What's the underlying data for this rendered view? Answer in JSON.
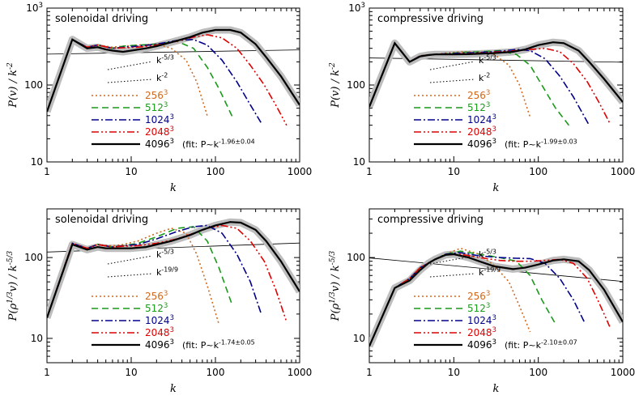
{
  "figure": {
    "resolution_labels": [
      "256",
      "512",
      "1024",
      "2048",
      "4096"
    ],
    "resolution_colors": [
      "#d2691e",
      "#1a9a1a",
      "#00008b",
      "#e00000",
      "#000000"
    ]
  },
  "chart_data": [
    {
      "type": "line",
      "title": "solenoidal driving",
      "xlabel": "k",
      "ylabel": "P(v) / k^-2",
      "xscale": "log",
      "yscale": "log",
      "xlim": [
        1,
        1000
      ],
      "ylim": [
        10,
        1000
      ],
      "xticks": [
        "1",
        "10",
        "100",
        "1000"
      ],
      "yticks": [
        "10",
        "100",
        "10^3"
      ],
      "series": [
        {
          "name": "256^3",
          "x": [
            1,
            2,
            3,
            4,
            6,
            8,
            12,
            20,
            30,
            45,
            60,
            80
          ],
          "y": [
            45,
            390,
            310,
            330,
            310,
            320,
            330,
            340,
            300,
            210,
            110,
            40
          ]
        },
        {
          "name": "512^3",
          "x": [
            1,
            2,
            3,
            4,
            6,
            8,
            12,
            20,
            35,
            55,
            80,
            110,
            160
          ],
          "y": [
            45,
            390,
            310,
            330,
            300,
            320,
            330,
            340,
            370,
            300,
            170,
            90,
            38
          ]
        },
        {
          "name": "1024^3",
          "x": [
            1,
            2,
            3,
            4,
            6,
            8,
            12,
            20,
            35,
            55,
            80,
            120,
            180,
            260,
            350
          ],
          "y": [
            45,
            390,
            310,
            330,
            300,
            310,
            320,
            340,
            380,
            390,
            330,
            210,
            110,
            55,
            32
          ]
        },
        {
          "name": "2048^3",
          "x": [
            1,
            2,
            3,
            4,
            6,
            8,
            12,
            20,
            35,
            55,
            80,
            120,
            180,
            260,
            380,
            520,
            700
          ],
          "y": [
            45,
            390,
            310,
            330,
            300,
            305,
            310,
            330,
            370,
            420,
            450,
            410,
            300,
            180,
            100,
            55,
            30
          ]
        },
        {
          "name": "4096^3",
          "x": [
            1,
            2,
            3,
            4,
            5,
            6,
            8,
            10,
            15,
            20,
            30,
            50,
            70,
            100,
            150,
            200,
            300,
            400,
            600,
            1000
          ],
          "y": [
            45,
            390,
            300,
            310,
            290,
            280,
            270,
            280,
            300,
            320,
            360,
            420,
            480,
            520,
            520,
            480,
            340,
            230,
            130,
            55
          ]
        }
      ],
      "fit_label": "(fit: P~k^{-1.96±0.04})",
      "annotations": [
        "k^-5/3",
        "k^-2"
      ]
    },
    {
      "type": "line",
      "title": "compressive driving",
      "xlabel": "k",
      "ylabel": "P(v) / k^-2",
      "xscale": "log",
      "yscale": "log",
      "xlim": [
        1,
        1000
      ],
      "ylim": [
        10,
        1000
      ],
      "xticks": [
        "1",
        "10",
        "100",
        "1000"
      ],
      "yticks": [
        "10",
        "100",
        "10^3"
      ],
      "series": [
        {
          "name": "256^3",
          "x": [
            1,
            2,
            3,
            4,
            6,
            8,
            12,
            20,
            30,
            45,
            60,
            80
          ],
          "y": [
            52,
            350,
            200,
            240,
            250,
            260,
            270,
            270,
            250,
            180,
            100,
            38
          ]
        },
        {
          "name": "512^3",
          "x": [
            1,
            2,
            3,
            4,
            6,
            8,
            12,
            20,
            35,
            55,
            80,
            110,
            160,
            230
          ],
          "y": [
            52,
            350,
            200,
            240,
            250,
            255,
            265,
            270,
            280,
            250,
            180,
            100,
            50,
            30
          ]
        },
        {
          "name": "1024^3",
          "x": [
            1,
            2,
            3,
            4,
            6,
            8,
            12,
            20,
            35,
            55,
            80,
            120,
            180,
            260,
            400
          ],
          "y": [
            52,
            350,
            200,
            240,
            250,
            255,
            260,
            265,
            275,
            290,
            280,
            220,
            130,
            70,
            30
          ]
        },
        {
          "name": "2048^3",
          "x": [
            1,
            2,
            3,
            4,
            6,
            8,
            12,
            20,
            35,
            55,
            80,
            120,
            180,
            260,
            380,
            520,
            700
          ],
          "y": [
            52,
            350,
            200,
            240,
            250,
            252,
            255,
            260,
            270,
            280,
            290,
            300,
            270,
            190,
            110,
            60,
            32
          ]
        },
        {
          "name": "4096^3",
          "x": [
            1,
            2,
            3,
            4,
            5,
            6,
            8,
            10,
            15,
            20,
            30,
            50,
            70,
            100,
            150,
            200,
            300,
            400,
            600,
            1000
          ],
          "y": [
            52,
            350,
            200,
            235,
            245,
            250,
            250,
            250,
            252,
            255,
            260,
            270,
            290,
            330,
            360,
            350,
            280,
            200,
            120,
            60
          ]
        }
      ],
      "fit_label": "(fit: P~k^{-1.99±0.03})",
      "annotations": [
        "k^-5/3",
        "k^-2"
      ]
    },
    {
      "type": "line",
      "title": "solenoidal driving",
      "xlabel": "k",
      "ylabel": "P(ρ^{1/3}v) / k^-5/3",
      "xscale": "log",
      "yscale": "log",
      "xlim": [
        1,
        1000
      ],
      "ylim": [
        5,
        400
      ],
      "xticks": [
        "1",
        "10",
        "100",
        "1000"
      ],
      "yticks": [
        "10",
        "100"
      ],
      "series": [
        {
          "name": "256^3",
          "x": [
            1,
            2,
            3,
            4,
            6,
            8,
            12,
            20,
            30,
            45,
            60,
            80,
            110
          ],
          "y": [
            18,
            150,
            130,
            145,
            140,
            145,
            160,
            200,
            230,
            200,
            110,
            45,
            15
          ]
        },
        {
          "name": "512^3",
          "x": [
            1,
            2,
            3,
            4,
            6,
            8,
            12,
            20,
            35,
            55,
            80,
            110,
            160
          ],
          "y": [
            18,
            150,
            130,
            145,
            135,
            140,
            150,
            180,
            230,
            240,
            160,
            75,
            25
          ]
        },
        {
          "name": "1024^3",
          "x": [
            1,
            2,
            3,
            4,
            6,
            8,
            12,
            20,
            35,
            55,
            80,
            120,
            180,
            260,
            350
          ],
          "y": [
            18,
            150,
            130,
            145,
            135,
            140,
            145,
            170,
            210,
            240,
            250,
            200,
            110,
            50,
            20
          ]
        },
        {
          "name": "2048^3",
          "x": [
            1,
            2,
            3,
            4,
            6,
            8,
            12,
            20,
            35,
            55,
            80,
            120,
            180,
            260,
            380,
            520,
            700
          ],
          "y": [
            18,
            150,
            130,
            145,
            135,
            138,
            140,
            150,
            170,
            200,
            230,
            250,
            230,
            160,
            90,
            40,
            16
          ]
        },
        {
          "name": "4096^3",
          "x": [
            1,
            2,
            3,
            4,
            5,
            6,
            8,
            10,
            15,
            20,
            30,
            50,
            70,
            100,
            150,
            200,
            300,
            400,
            600,
            1000
          ],
          "y": [
            18,
            145,
            125,
            135,
            130,
            130,
            130,
            130,
            135,
            145,
            160,
            190,
            220,
            250,
            275,
            270,
            220,
            160,
            90,
            38
          ]
        }
      ],
      "fit_label": "(fit: P~k^{-1.74±0.05})",
      "annotations": [
        "k^-5/3",
        "k^-19/9"
      ]
    },
    {
      "type": "line",
      "title": "compressive driving",
      "xlabel": "k",
      "ylabel": "P(ρ^{1/3}v) / k^-5/3",
      "xscale": "log",
      "yscale": "log",
      "xlim": [
        1,
        1000
      ],
      "ylim": [
        5,
        400
      ],
      "xticks": [
        "1",
        "10",
        "100",
        "1000"
      ],
      "yticks": [
        "10",
        "100"
      ],
      "series": [
        {
          "name": "256^3",
          "x": [
            1,
            2,
            3,
            4,
            6,
            8,
            12,
            20,
            30,
            45,
            60,
            80
          ],
          "y": [
            8,
            42,
            55,
            75,
            95,
            110,
            130,
            110,
            80,
            50,
            25,
            12
          ]
        },
        {
          "name": "512^3",
          "x": [
            1,
            2,
            3,
            4,
            6,
            8,
            12,
            20,
            35,
            55,
            80,
            110,
            160
          ],
          "y": [
            8,
            42,
            55,
            75,
            95,
            110,
            120,
            110,
            100,
            90,
            60,
            30,
            15
          ]
        },
        {
          "name": "1024^3",
          "x": [
            1,
            2,
            3,
            4,
            6,
            8,
            12,
            20,
            35,
            55,
            80,
            120,
            180,
            260,
            350
          ],
          "y": [
            8,
            42,
            55,
            75,
            95,
            110,
            115,
            105,
            100,
            98,
            97,
            85,
            55,
            30,
            16
          ]
        },
        {
          "name": "2048^3",
          "x": [
            1,
            2,
            3,
            4,
            6,
            8,
            12,
            20,
            35,
            55,
            80,
            120,
            180,
            260,
            380,
            520,
            700
          ],
          "y": [
            8,
            42,
            55,
            75,
            95,
            108,
            110,
            100,
            92,
            90,
            90,
            92,
            95,
            85,
            55,
            28,
            14
          ]
        },
        {
          "name": "4096^3",
          "x": [
            1,
            2,
            3,
            4,
            5,
            6,
            8,
            10,
            15,
            20,
            30,
            50,
            70,
            100,
            150,
            200,
            300,
            400,
            600,
            1000
          ],
          "y": [
            8,
            42,
            52,
            70,
            85,
            95,
            108,
            110,
            100,
            90,
            78,
            72,
            75,
            82,
            92,
            95,
            90,
            70,
            40,
            16
          ]
        }
      ],
      "fit_label": "(fit: P~k^{-2.10±0.07})",
      "annotations": [
        "k^-5/3",
        "k^-19/9"
      ]
    }
  ]
}
